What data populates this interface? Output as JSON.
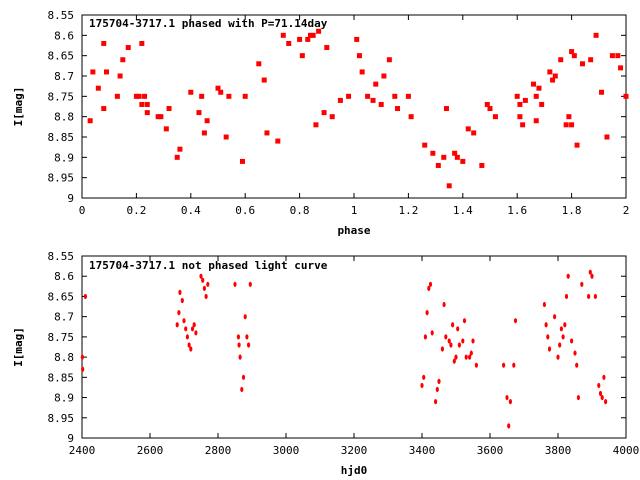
{
  "chart_data": [
    {
      "type": "scatter",
      "title": "175704-3717.1 phased with P=71.14day",
      "xlabel": "phase",
      "ylabel": "I[mag]",
      "xlim": [
        0,
        2
      ],
      "ylim": [
        9,
        8.55
      ],
      "y_inverted": true,
      "xticks": [
        "0",
        "0.2",
        "0.4",
        "0.6",
        "0.8",
        "1",
        "1.2",
        "1.4",
        "1.6",
        "1.8",
        "2"
      ],
      "yticks": [
        "8.55",
        "8.6",
        "8.65",
        "8.7",
        "8.75",
        "8.8",
        "8.85",
        "8.9",
        "8.95",
        "9"
      ],
      "grid": false,
      "marker_color": "#ff0000",
      "series": [
        {
          "name": "",
          "x": [
            0.03,
            0.04,
            0.06,
            0.08,
            0.08,
            0.09,
            0.13,
            0.14,
            0.15,
            0.17,
            0.2,
            0.21,
            0.22,
            0.22,
            0.23,
            0.24,
            0.24,
            0.28,
            0.29,
            0.31,
            0.32,
            0.35,
            0.36,
            0.4,
            0.43,
            0.44,
            0.45,
            0.46,
            0.5,
            0.51,
            0.53,
            0.54,
            0.59,
            0.6,
            0.65,
            0.67,
            0.68,
            0.72,
            0.74,
            0.76,
            0.8,
            0.81,
            0.83,
            0.84,
            0.85,
            0.86,
            0.87,
            0.89,
            0.9,
            0.92,
            0.95,
            0.98,
            1.01,
            1.02,
            1.03,
            1.05,
            1.07,
            1.08,
            1.1,
            1.11,
            1.13,
            1.15,
            1.16,
            1.2,
            1.21,
            1.26,
            1.29,
            1.31,
            1.33,
            1.34,
            1.35,
            1.37,
            1.38,
            1.4,
            1.42,
            1.44,
            1.47,
            1.49,
            1.5,
            1.52,
            1.6,
            1.61,
            1.61,
            1.62,
            1.63,
            1.66,
            1.67,
            1.67,
            1.68,
            1.69,
            1.72,
            1.73,
            1.74,
            1.76,
            1.78,
            1.79,
            1.8,
            1.8,
            1.81,
            1.82,
            1.84,
            1.87,
            1.89,
            1.91,
            1.93,
            1.95,
            1.97,
            1.98,
            2.0
          ],
          "y": [
            8.81,
            8.69,
            8.73,
            8.62,
            8.78,
            8.69,
            8.75,
            8.7,
            8.66,
            8.63,
            8.75,
            8.75,
            8.77,
            8.62,
            8.75,
            8.79,
            8.77,
            8.8,
            8.8,
            8.83,
            8.78,
            8.9,
            8.88,
            8.74,
            8.79,
            8.75,
            8.84,
            8.81,
            8.73,
            8.74,
            8.85,
            8.75,
            8.91,
            8.75,
            8.67,
            8.71,
            8.84,
            8.86,
            8.6,
            8.62,
            8.61,
            8.65,
            8.61,
            8.6,
            8.6,
            8.82,
            8.59,
            8.79,
            8.63,
            8.8,
            8.76,
            8.75,
            8.61,
            8.65,
            8.69,
            8.75,
            8.76,
            8.72,
            8.77,
            8.7,
            8.66,
            8.75,
            8.78,
            8.75,
            8.8,
            8.87,
            8.89,
            8.92,
            8.9,
            8.78,
            8.97,
            8.89,
            8.9,
            8.91,
            8.83,
            8.84,
            8.92,
            8.77,
            8.78,
            8.8,
            8.75,
            8.8,
            8.77,
            8.82,
            8.76,
            8.72,
            8.75,
            8.81,
            8.73,
            8.77,
            8.69,
            8.71,
            8.7,
            8.66,
            8.82,
            8.8,
            8.64,
            8.82,
            8.65,
            8.87,
            8.67,
            8.66,
            8.6,
            8.74,
            8.85,
            8.65,
            8.65,
            8.68,
            8.75
          ]
        }
      ]
    },
    {
      "type": "scatter",
      "title": "175704-3717.1 not phased light curve",
      "xlabel": "hjd0",
      "ylabel": "I[mag]",
      "xlim": [
        2400,
        4000
      ],
      "ylim": [
        9,
        8.55
      ],
      "y_inverted": true,
      "xticks": [
        "2400",
        "2600",
        "2800",
        "3000",
        "3200",
        "3400",
        "3600",
        "3800",
        "4000"
      ],
      "yticks": [
        "8.55",
        "8.6",
        "8.65",
        "8.7",
        "8.75",
        "8.8",
        "8.85",
        "8.9",
        "8.95",
        "9"
      ],
      "grid": false,
      "marker_color": "#ff0000",
      "series": [
        {
          "name": "",
          "x": [
            2401,
            2402,
            2410,
            2680,
            2685,
            2688,
            2695,
            2700,
            2705,
            2710,
            2715,
            2720,
            2725,
            2730,
            2735,
            2750,
            2755,
            2760,
            2765,
            2770,
            2850,
            2860,
            2862,
            2865,
            2870,
            2875,
            2880,
            2885,
            2890,
            2895,
            3400,
            3405,
            3410,
            3415,
            3420,
            3425,
            3430,
            3440,
            3445,
            3450,
            3460,
            3465,
            3470,
            3480,
            3485,
            3490,
            3495,
            3500,
            3505,
            3510,
            3520,
            3525,
            3530,
            3540,
            3545,
            3550,
            3560,
            3640,
            3650,
            3655,
            3660,
            3670,
            3675,
            3760,
            3765,
            3770,
            3775,
            3790,
            3800,
            3805,
            3810,
            3815,
            3820,
            3825,
            3830,
            3840,
            3850,
            3855,
            3860,
            3870,
            3890,
            3895,
            3900,
            3910,
            3920,
            3925,
            3930,
            3935,
            3940
          ],
          "y": [
            8.8,
            8.83,
            8.65,
            8.72,
            8.69,
            8.64,
            8.66,
            8.71,
            8.73,
            8.75,
            8.77,
            8.78,
            8.73,
            8.72,
            8.74,
            8.6,
            8.61,
            8.63,
            8.65,
            8.62,
            8.62,
            8.75,
            8.77,
            8.8,
            8.88,
            8.85,
            8.7,
            8.75,
            8.77,
            8.62,
            8.87,
            8.85,
            8.75,
            8.69,
            8.63,
            8.62,
            8.74,
            8.91,
            8.88,
            8.86,
            8.78,
            8.67,
            8.75,
            8.76,
            8.77,
            8.72,
            8.81,
            8.8,
            8.73,
            8.77,
            8.76,
            8.71,
            8.8,
            8.8,
            8.79,
            8.76,
            8.82,
            8.82,
            8.9,
            8.97,
            8.91,
            8.82,
            8.71,
            8.67,
            8.72,
            8.75,
            8.78,
            8.7,
            8.8,
            8.77,
            8.73,
            8.75,
            8.72,
            8.65,
            8.6,
            8.76,
            8.79,
            8.82,
            8.9,
            8.62,
            8.65,
            8.59,
            8.6,
            8.65,
            8.87,
            8.89,
            8.9,
            8.85,
            8.91
          ]
        }
      ]
    }
  ]
}
